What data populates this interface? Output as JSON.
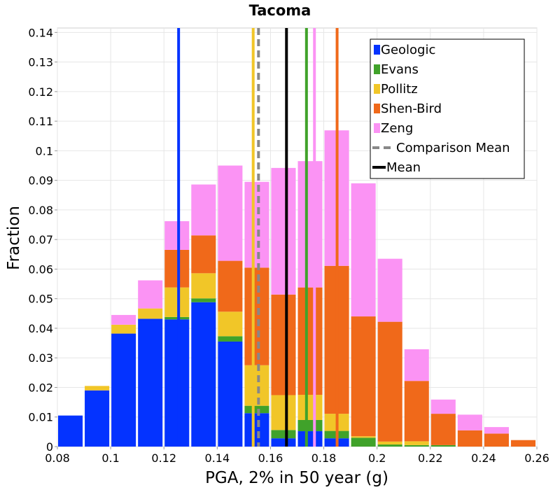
{
  "chart_data": {
    "type": "bar",
    "stacked": true,
    "title": "Tacoma",
    "xlabel": "PGA, 2% in 50 year (g)",
    "ylabel": "Fraction",
    "xlim": [
      0.08,
      0.26
    ],
    "ylim": [
      0,
      0.1415
    ],
    "xticks": [
      0.08,
      0.1,
      0.12,
      0.14,
      0.16,
      0.18,
      0.2,
      0.22,
      0.24,
      0.26
    ],
    "yticks": [
      0,
      0.01,
      0.02,
      0.03,
      0.04,
      0.05,
      0.06,
      0.07,
      0.08,
      0.09,
      0.1,
      0.11,
      0.12,
      0.13,
      0.14
    ],
    "xtick_labels": [
      "0.08",
      "0.1",
      "0.12",
      "0.14",
      "0.16",
      "0.18",
      "0.2",
      "0.22",
      "0.24",
      "0.26"
    ],
    "ytick_labels": [
      "0",
      "0.01",
      "0.02",
      "0.03",
      "0.04",
      "0.05",
      "0.06",
      "0.07",
      "0.08",
      "0.09",
      "0.1",
      "0.11",
      "0.12",
      "0.13",
      "0.14"
    ],
    "grid": true,
    "legend_position": "top-right",
    "bin_width": 0.01,
    "bins": [
      0.08,
      0.09,
      0.1,
      0.11,
      0.12,
      0.13,
      0.14,
      0.15,
      0.16,
      0.17,
      0.18,
      0.19,
      0.2,
      0.21,
      0.22,
      0.23,
      0.24,
      0.25
    ],
    "series": [
      {
        "name": "Geologic",
        "color": "#0433ff",
        "values": [
          0.0105,
          0.019,
          0.0382,
          0.0432,
          0.043,
          0.0488,
          0.0355,
          0.0113,
          0.0028,
          0.0052,
          0.0028,
          0,
          0,
          0,
          0,
          0,
          0,
          0
        ]
      },
      {
        "name": "Evans",
        "color": "#40a22a",
        "values": [
          0,
          0,
          0,
          0,
          0.0008,
          0.0013,
          0.0018,
          0.0025,
          0.0028,
          0.0038,
          0.0025,
          0.003,
          0.0007,
          0.0005,
          0.0005,
          0,
          0,
          0
        ]
      },
      {
        "name": "Pollitz",
        "color": "#f1c628",
        "values": [
          0,
          0.0015,
          0.003,
          0.0035,
          0.01,
          0.0085,
          0.0083,
          0.0137,
          0.0118,
          0.0085,
          0.0058,
          0.0005,
          0.001,
          0.0013,
          0,
          0,
          0,
          0
        ]
      },
      {
        "name": "Shen-Bird",
        "color": "#f0691a",
        "values": [
          0,
          0,
          0,
          0,
          0.0127,
          0.0128,
          0.0172,
          0.033,
          0.034,
          0.0363,
          0.05,
          0.0405,
          0.0405,
          0.0204,
          0.0106,
          0.0055,
          0.0044,
          0.0022
        ]
      },
      {
        "name": "Zeng",
        "color": "#fb93f4",
        "values": [
          0,
          0,
          0.0033,
          0.0095,
          0.0097,
          0.0172,
          0.0322,
          0.029,
          0.0428,
          0.0427,
          0.0458,
          0.045,
          0.0213,
          0.0107,
          0.0048,
          0.0053,
          0.0022,
          0
        ]
      }
    ],
    "vertical_lines": [
      {
        "name": "Geologic",
        "x": 0.1255,
        "color": "#0433ff",
        "dashed": false
      },
      {
        "name": "Pollitz",
        "x": 0.1535,
        "color": "#f1c628",
        "dashed": false
      },
      {
        "name": "Comparison Mean",
        "x": 0.1555,
        "color": "#888888",
        "dashed": true
      },
      {
        "name": "Mean",
        "x": 0.166,
        "color": "#000000",
        "dashed": false
      },
      {
        "name": "Evans",
        "x": 0.1735,
        "color": "#40a22a",
        "dashed": false
      },
      {
        "name": "Zeng",
        "x": 0.1765,
        "color": "#fb93f4",
        "dashed": false
      },
      {
        "name": "Shen-Bird",
        "x": 0.185,
        "color": "#f0691a",
        "dashed": false
      }
    ],
    "legend": [
      {
        "label": "Geologic",
        "color": "#0433ff",
        "style": "box"
      },
      {
        "label": "Evans",
        "color": "#40a22a",
        "style": "box"
      },
      {
        "label": "Pollitz",
        "color": "#f1c628",
        "style": "box"
      },
      {
        "label": "Shen-Bird",
        "color": "#f0691a",
        "style": "box"
      },
      {
        "label": "Zeng",
        "color": "#fb93f4",
        "style": "box"
      },
      {
        "label": "Comparison Mean",
        "color": "#888888",
        "style": "dashed"
      },
      {
        "label": "Mean",
        "color": "#000000",
        "style": "line"
      }
    ]
  }
}
